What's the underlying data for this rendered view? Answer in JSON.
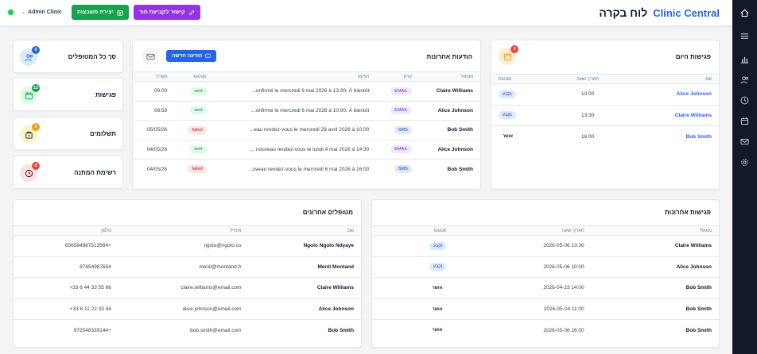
{
  "header": {
    "title": "לוח בקרה",
    "brand": "Clinic Central",
    "user": "Admin Clinic",
    "btn_waitlist": "יצירת משבצות",
    "btn_link": "קישור לקביעת תור"
  },
  "stats": [
    {
      "label": "סך כל המטופלים",
      "count": "5",
      "icon": "users-icon",
      "color": "#2563eb",
      "bg": "#dbeafe"
    },
    {
      "label": "פגישות",
      "count": "13",
      "icon": "calendar-icon",
      "color": "#16a34a",
      "bg": "#dcfce7"
    },
    {
      "label": "תשלומים",
      "count": "3",
      "icon": "wallet-icon",
      "color": "#f59e0b",
      "bg": "#fef3c7"
    },
    {
      "label": "רשימת המתנה",
      "count": "4",
      "icon": "clock-icon",
      "color": "#ef4444",
      "bg": "#fee2e2"
    }
  ],
  "today": {
    "title": "פגישות היום",
    "badge": "3",
    "headers": [
      "שם",
      "תאריך ושעה",
      "סטטוס"
    ],
    "rows": [
      {
        "name": "Alice Johnson",
        "time": "10:00",
        "status": "נקבע",
        "kind": "blue"
      },
      {
        "name": "Claire Williams",
        "time": "13:30",
        "status": "נקבע",
        "kind": "blue"
      },
      {
        "name": "Bob Smith",
        "time": "16:00",
        "status": "אושר",
        "kind": "plain"
      }
    ]
  },
  "messages": {
    "title": "הודעות אחרונות",
    "new_btn": "הודעה חדשה",
    "headers": [
      "מטופל",
      "ערוץ",
      "הודעה",
      "סטטוס",
      "תאריך"
    ],
    "rows": [
      {
        "patient": "Claire Williams",
        "channel": "EMAIL",
        "msg": "...onfirmé le mercredi 6 mai 2026 à 13:30. À bientôt",
        "status": "sent",
        "date": "09:00"
      },
      {
        "patient": "Alice Johnson",
        "channel": "EMAIL",
        "msg": "...onfirmé le mercredi 6 mai 2026 à 10:00. À bientôt",
        "status": "sent",
        "date": "08:59"
      },
      {
        "patient": "Bob Smith",
        "channel": "SMS",
        "msg": "...eau rendez-vous le mercredi 29 avril 2026 à 10:00",
        "status": "failed",
        "date": "05/05/26"
      },
      {
        "patient": "Alice Johnson",
        "channel": "EMAIL",
        "msg": "...: nouveau rendez-vous le lundi 4 mai 2026 à 14:30",
        "status": "sent",
        "date": "04/05/26"
      },
      {
        "patient": "Bob Smith",
        "channel": "SMS",
        "msg": "...uveau rendez-vous le mercredi 6 mai 2026 à 16:00",
        "status": "failed",
        "date": "04/05/26"
      }
    ]
  },
  "recent_appts": {
    "title": "פגישות אחרונות",
    "headers": [
      "מטופל",
      "תאריך ושעה",
      "סטטוס"
    ],
    "rows": [
      {
        "patient": "Claire Williams",
        "dt": "2026-05-06 13:30",
        "status": "נקבע",
        "kind": "blue"
      },
      {
        "patient": "Alice Johnson",
        "dt": "2026-05-06 10:00",
        "status": "נקבע",
        "kind": "blue"
      },
      {
        "patient": "Bob Smith",
        "dt": "2026-04-23 14:00",
        "status": "אושר",
        "kind": "plain"
      },
      {
        "patient": "Bob Smith",
        "dt": "2026-05-04 11:00",
        "status": "אושר",
        "kind": "plain"
      },
      {
        "patient": "Bob Smith",
        "dt": "2026-05-06 16:00",
        "status": "אושר",
        "kind": "plain"
      }
    ]
  },
  "recent_patients": {
    "title": "מטופלים אחרונים",
    "headers": [
      "שם",
      "אימייל",
      "טלפון"
    ],
    "rows": [
      {
        "name": "Ngolo Ngolo Ndyaye",
        "email": "ngolo@ngolo.co",
        "phone": "+656584987513564"
      },
      {
        "name": "Menil Montand",
        "email": "menil@montand.fr",
        "phone": "87654987654"
      },
      {
        "name": "Claire Williams",
        "email": "claire.williams@email.com",
        "phone": "+33 6 44 33 55 66"
      },
      {
        "name": "Alice Johnson",
        "email": "alice.johnson@email.com",
        "phone": "+33 6 11 22 33 44"
      },
      {
        "name": "Bob Smith",
        "email": "bob.smith@email.com",
        "phone": "+972548339144"
      }
    ]
  },
  "sidebar": [
    "home-icon",
    "menu-icon",
    "chart-icon",
    "users-icon",
    "clock-icon",
    "calendar-icon",
    "mail-icon",
    "gear-icon"
  ]
}
